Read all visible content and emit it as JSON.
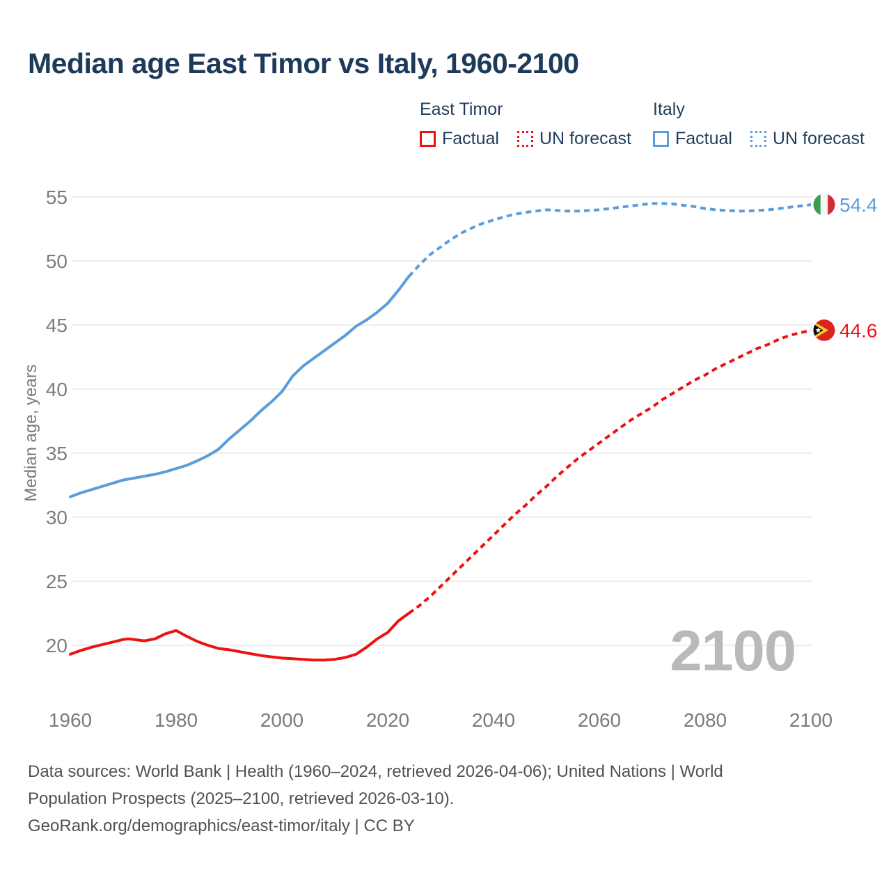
{
  "title": "Median age East Timor vs Italy, 1960-2100",
  "legend": {
    "groups": [
      {
        "label": "East Timor",
        "color": "#ee1111",
        "items": [
          {
            "label": "Factual",
            "style": "solid"
          },
          {
            "label": "UN forecast",
            "style": "dotted"
          }
        ]
      },
      {
        "label": "Italy",
        "color": "#5b9ddb",
        "items": [
          {
            "label": "Factual",
            "style": "solid"
          },
          {
            "label": "UN forecast",
            "style": "dotted"
          }
        ]
      }
    ]
  },
  "watermark": "2100",
  "y_axis_title": "Median age, years",
  "footer": {
    "line1": "Data sources: World Bank | Health (1960–2024, retrieved 2026-04-06); United Nations | World",
    "line2": "Population Prospects (2025–2100, retrieved 2026-03-10).",
    "line3": "GeoRank.org/demographics/east-timor/italy | CC BY"
  },
  "colors": {
    "east_timor": "#ee1111",
    "italy": "#5b9ddb",
    "title_navy": "#1d3a5a",
    "axis_gray": "#7b7b7b",
    "gridline": "#e9e9e9",
    "watermark_gray": "#b9b9b9",
    "footer_gray": "#515151"
  },
  "chart_data": {
    "type": "line",
    "title": "Median age East Timor vs Italy, 1960-2100",
    "xlabel": "",
    "ylabel": "Median age, years",
    "x_range": [
      1960,
      2100
    ],
    "y_range_shown": [
      20,
      55
    ],
    "grid": "horizontal-only",
    "x_axis": {
      "ticks": [
        1960,
        1980,
        2000,
        2020,
        2040,
        2060,
        2080,
        2100
      ]
    },
    "y_axis": {
      "ticks": [
        20,
        25,
        30,
        35,
        40,
        45,
        50,
        55
      ]
    },
    "series": [
      {
        "name": "Italy — Factual",
        "color": "#5b9ddb",
        "line_style": "solid",
        "points": [
          [
            1960,
            31.6
          ],
          [
            1962,
            31.9
          ],
          [
            1964,
            32.15
          ],
          [
            1966,
            32.4
          ],
          [
            1968,
            32.65
          ],
          [
            1970,
            32.9
          ],
          [
            1972,
            33.05
          ],
          [
            1974,
            33.2
          ],
          [
            1976,
            33.35
          ],
          [
            1978,
            33.55
          ],
          [
            1980,
            33.8
          ],
          [
            1982,
            34.05
          ],
          [
            1984,
            34.4
          ],
          [
            1986,
            34.8
          ],
          [
            1988,
            35.3
          ],
          [
            1990,
            36.1
          ],
          [
            1992,
            36.8
          ],
          [
            1994,
            37.5
          ],
          [
            1996,
            38.3
          ],
          [
            1998,
            39.0
          ],
          [
            2000,
            39.8
          ],
          [
            2002,
            41.0
          ],
          [
            2004,
            41.8
          ],
          [
            2006,
            42.4
          ],
          [
            2008,
            43.0
          ],
          [
            2010,
            43.6
          ],
          [
            2012,
            44.2
          ],
          [
            2014,
            44.9
          ],
          [
            2016,
            45.4
          ],
          [
            2018,
            46.0
          ],
          [
            2020,
            46.7
          ],
          [
            2022,
            47.7
          ],
          [
            2024,
            48.8
          ]
        ]
      },
      {
        "name": "Italy — UN forecast",
        "color": "#5b9ddb",
        "line_style": "dashed",
        "points": [
          [
            2024,
            48.8
          ],
          [
            2026,
            49.7
          ],
          [
            2028,
            50.5
          ],
          [
            2030,
            51.1
          ],
          [
            2032,
            51.7
          ],
          [
            2034,
            52.2
          ],
          [
            2036,
            52.6
          ],
          [
            2038,
            52.95
          ],
          [
            2040,
            53.2
          ],
          [
            2042,
            53.45
          ],
          [
            2044,
            53.65
          ],
          [
            2046,
            53.8
          ],
          [
            2048,
            53.9
          ],
          [
            2050,
            54.0
          ],
          [
            2052,
            53.95
          ],
          [
            2054,
            53.9
          ],
          [
            2056,
            53.9
          ],
          [
            2058,
            53.95
          ],
          [
            2060,
            54.0
          ],
          [
            2062,
            54.1
          ],
          [
            2064,
            54.2
          ],
          [
            2066,
            54.3
          ],
          [
            2068,
            54.4
          ],
          [
            2070,
            54.5
          ],
          [
            2072,
            54.5
          ],
          [
            2074,
            54.45
          ],
          [
            2076,
            54.35
          ],
          [
            2078,
            54.25
          ],
          [
            2080,
            54.1
          ],
          [
            2082,
            54.0
          ],
          [
            2084,
            53.95
          ],
          [
            2086,
            53.9
          ],
          [
            2088,
            53.9
          ],
          [
            2090,
            53.95
          ],
          [
            2092,
            54.0
          ],
          [
            2094,
            54.1
          ],
          [
            2096,
            54.2
          ],
          [
            2098,
            54.3
          ],
          [
            2100,
            54.4
          ]
        ]
      },
      {
        "name": "East Timor — Factual",
        "color": "#ee1111",
        "line_style": "solid",
        "points": [
          [
            1960,
            19.3
          ],
          [
            1962,
            19.6
          ],
          [
            1964,
            19.85
          ],
          [
            1966,
            20.05
          ],
          [
            1968,
            20.25
          ],
          [
            1970,
            20.45
          ],
          [
            1971,
            20.5
          ],
          [
            1972,
            20.45
          ],
          [
            1974,
            20.35
          ],
          [
            1976,
            20.5
          ],
          [
            1978,
            20.9
          ],
          [
            1980,
            21.15
          ],
          [
            1982,
            20.7
          ],
          [
            1984,
            20.3
          ],
          [
            1986,
            20.0
          ],
          [
            1988,
            19.75
          ],
          [
            1990,
            19.65
          ],
          [
            1992,
            19.5
          ],
          [
            1994,
            19.35
          ],
          [
            1996,
            19.2
          ],
          [
            1998,
            19.1
          ],
          [
            2000,
            19.0
          ],
          [
            2002,
            18.95
          ],
          [
            2004,
            18.9
          ],
          [
            2006,
            18.85
          ],
          [
            2008,
            18.85
          ],
          [
            2010,
            18.9
          ],
          [
            2012,
            19.05
          ],
          [
            2014,
            19.3
          ],
          [
            2016,
            19.85
          ],
          [
            2018,
            20.5
          ],
          [
            2020,
            21.0
          ],
          [
            2022,
            21.9
          ],
          [
            2024,
            22.5
          ]
        ]
      },
      {
        "name": "East Timor — UN forecast",
        "color": "#ee1111",
        "line_style": "dashed",
        "points": [
          [
            2024,
            22.5
          ],
          [
            2026,
            23.1
          ],
          [
            2028,
            23.8
          ],
          [
            2030,
            24.6
          ],
          [
            2032,
            25.4
          ],
          [
            2034,
            26.2
          ],
          [
            2036,
            27.0
          ],
          [
            2038,
            27.8
          ],
          [
            2040,
            28.6
          ],
          [
            2042,
            29.4
          ],
          [
            2044,
            30.2
          ],
          [
            2046,
            30.9
          ],
          [
            2048,
            31.7
          ],
          [
            2050,
            32.4
          ],
          [
            2052,
            33.2
          ],
          [
            2054,
            33.9
          ],
          [
            2056,
            34.6
          ],
          [
            2058,
            35.2
          ],
          [
            2060,
            35.8
          ],
          [
            2062,
            36.4
          ],
          [
            2064,
            37.0
          ],
          [
            2066,
            37.6
          ],
          [
            2068,
            38.1
          ],
          [
            2070,
            38.6
          ],
          [
            2072,
            39.2
          ],
          [
            2074,
            39.7
          ],
          [
            2076,
            40.2
          ],
          [
            2078,
            40.7
          ],
          [
            2080,
            41.1
          ],
          [
            2082,
            41.6
          ],
          [
            2084,
            42.0
          ],
          [
            2086,
            42.4
          ],
          [
            2088,
            42.8
          ],
          [
            2090,
            43.2
          ],
          [
            2092,
            43.5
          ],
          [
            2094,
            43.9
          ],
          [
            2096,
            44.2
          ],
          [
            2098,
            44.4
          ],
          [
            2100,
            44.6
          ]
        ]
      }
    ],
    "end_markers": [
      {
        "country": "Italy",
        "flag": "italy",
        "value": 54.4,
        "label": "54.4",
        "color": "#5b9ddb"
      },
      {
        "country": "East Timor",
        "flag": "east_timor",
        "value": 44.6,
        "label": "44.6",
        "color": "#ee1111"
      }
    ]
  }
}
